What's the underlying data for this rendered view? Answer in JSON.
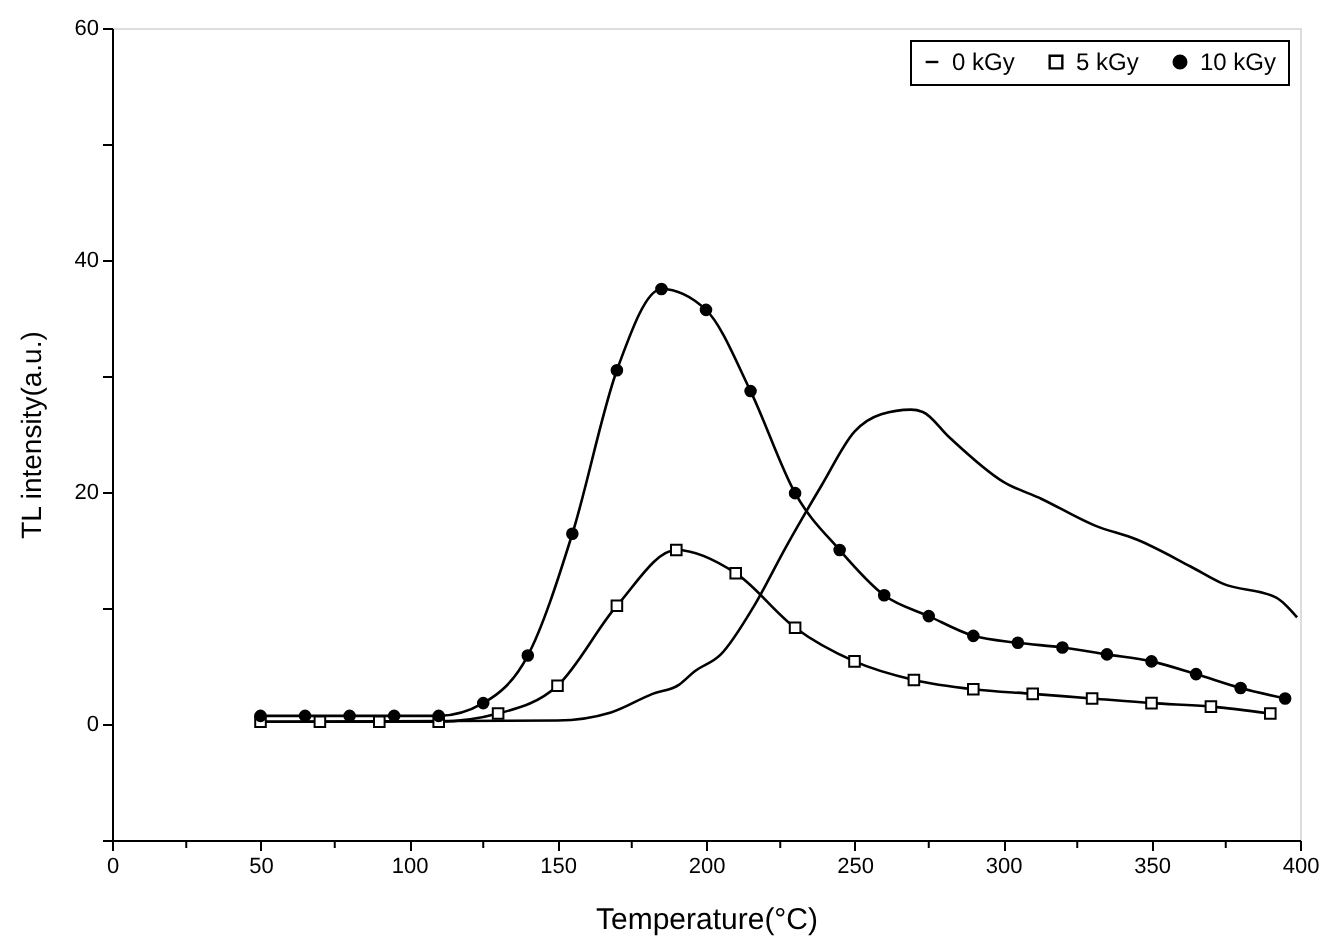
{
  "chart_data": {
    "type": "line",
    "xlabel": "Temperature(°C)",
    "ylabel": "TL intensity(a.u.)",
    "xlim": [
      0,
      400
    ],
    "xticks": [
      0,
      {
        "value": 25,
        "label": null
      },
      50,
      {
        "value": 75,
        "label": null
      },
      100,
      {
        "value": 125,
        "label": null
      },
      150,
      {
        "value": 175,
        "label": null
      },
      200,
      {
        "value": 225,
        "label": null
      },
      250,
      {
        "value": 275,
        "label": null
      },
      300,
      {
        "value": 325,
        "label": null
      },
      350,
      {
        "value": 375,
        "label": null
      },
      400
    ],
    "ylim": [
      -10,
      60
    ],
    "yticks": [
      {
        "value": -10,
        "label": null
      },
      0,
      {
        "value": 10,
        "label": null
      },
      20,
      {
        "value": 30,
        "label": null
      },
      40,
      {
        "value": 50,
        "label": null
      },
      60
    ],
    "grid": false,
    "legend": "top right",
    "line_style": "solid",
    "series": [
      {
        "name": "0 kGy",
        "color": "#000000",
        "marker": "none",
        "x": [
          50,
          150,
          168,
          182,
          191,
          196,
          205,
          216,
          227,
          239,
          250,
          259,
          269,
          273,
          282,
          300,
          313,
          331,
          345,
          363,
          374,
          392,
          399
        ],
        "values": [
          0.2,
          0.3,
          1.0,
          2.6,
          3.4,
          4.5,
          6.0,
          10.1,
          15.3,
          20.6,
          25.2,
          26.7,
          27.1,
          26.9,
          24.7,
          20.9,
          19.4,
          17.1,
          15.9,
          13.6,
          12.1,
          10.9,
          9.2
        ]
      },
      {
        "name": "5 kGy",
        "color": "#000000",
        "marker": "square",
        "x": [
          50,
          70,
          90,
          110,
          130,
          150,
          170,
          190,
          210,
          230,
          250,
          270,
          290,
          310,
          330,
          350,
          370,
          390
        ],
        "values": [
          0.2,
          0.2,
          0.2,
          0.2,
          0.9,
          3.3,
          10.2,
          15.0,
          13.0,
          8.3,
          5.4,
          3.8,
          3.0,
          2.6,
          2.2,
          1.8,
          1.5,
          0.9
        ]
      },
      {
        "name": "10 kGy",
        "color": "#000000",
        "marker": "circle",
        "x": [
          50,
          65,
          80,
          95,
          110,
          125,
          140,
          155,
          170,
          185,
          200,
          215,
          230,
          245,
          260,
          275,
          290,
          305,
          320,
          335,
          350,
          365,
          380,
          395
        ],
        "values": [
          0.7,
          0.7,
          0.7,
          0.7,
          0.7,
          1.8,
          5.9,
          16.4,
          30.5,
          37.5,
          35.7,
          28.7,
          19.9,
          15.0,
          11.1,
          9.3,
          7.6,
          7.0,
          6.6,
          6.0,
          5.4,
          4.3,
          3.1,
          2.2
        ]
      }
    ]
  }
}
